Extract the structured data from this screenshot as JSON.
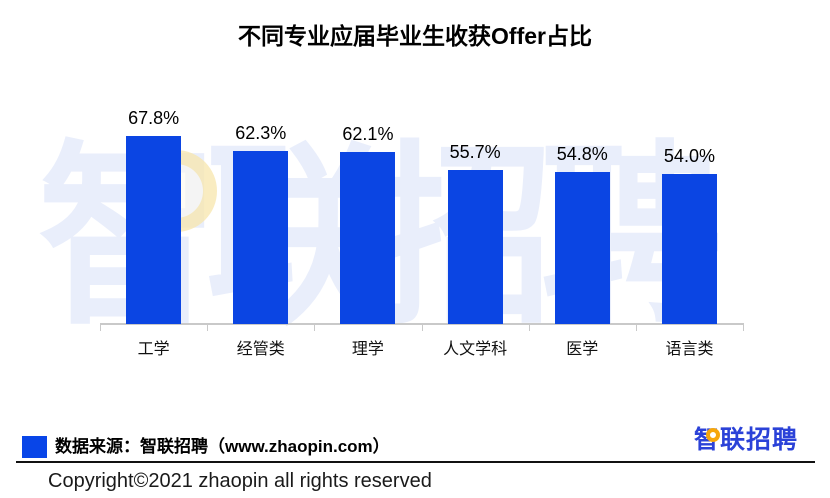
{
  "title": "不同专业应届毕业生收获Offer占比",
  "chart_data": {
    "type": "bar",
    "title": "不同专业应届毕业生收获Offer占比",
    "categories": [
      "工学",
      "经管类",
      "理学",
      "人文学科",
      "医学",
      "语言类"
    ],
    "values": [
      67.8,
      62.3,
      62.1,
      55.7,
      54.8,
      54.0
    ],
    "value_labels": [
      "67.8%",
      "62.3%",
      "62.1%",
      "55.7%",
      "54.8%",
      "54.0%"
    ],
    "xlabel": "",
    "ylabel": "",
    "ylim": [
      0,
      75
    ],
    "y_axis_visible": false,
    "grid": false,
    "legend_position": "none",
    "bar_color": "#0b45e3",
    "axis_color": "#c9c9c9"
  },
  "watermark": {
    "text": "智联招聘",
    "color": "#e9eefb",
    "ring_color": "#f6de8d"
  },
  "footer": {
    "source_swatch_color": "#0845e8",
    "source_label": "数据来源：智联招聘（www.zhaopin.com）",
    "logo_text": "智联招聘",
    "logo_color": "#2b42d8",
    "logo_dot_color": "#f6a60b",
    "copyright": "Copyright©2021 zhaopin all rights reserved"
  }
}
